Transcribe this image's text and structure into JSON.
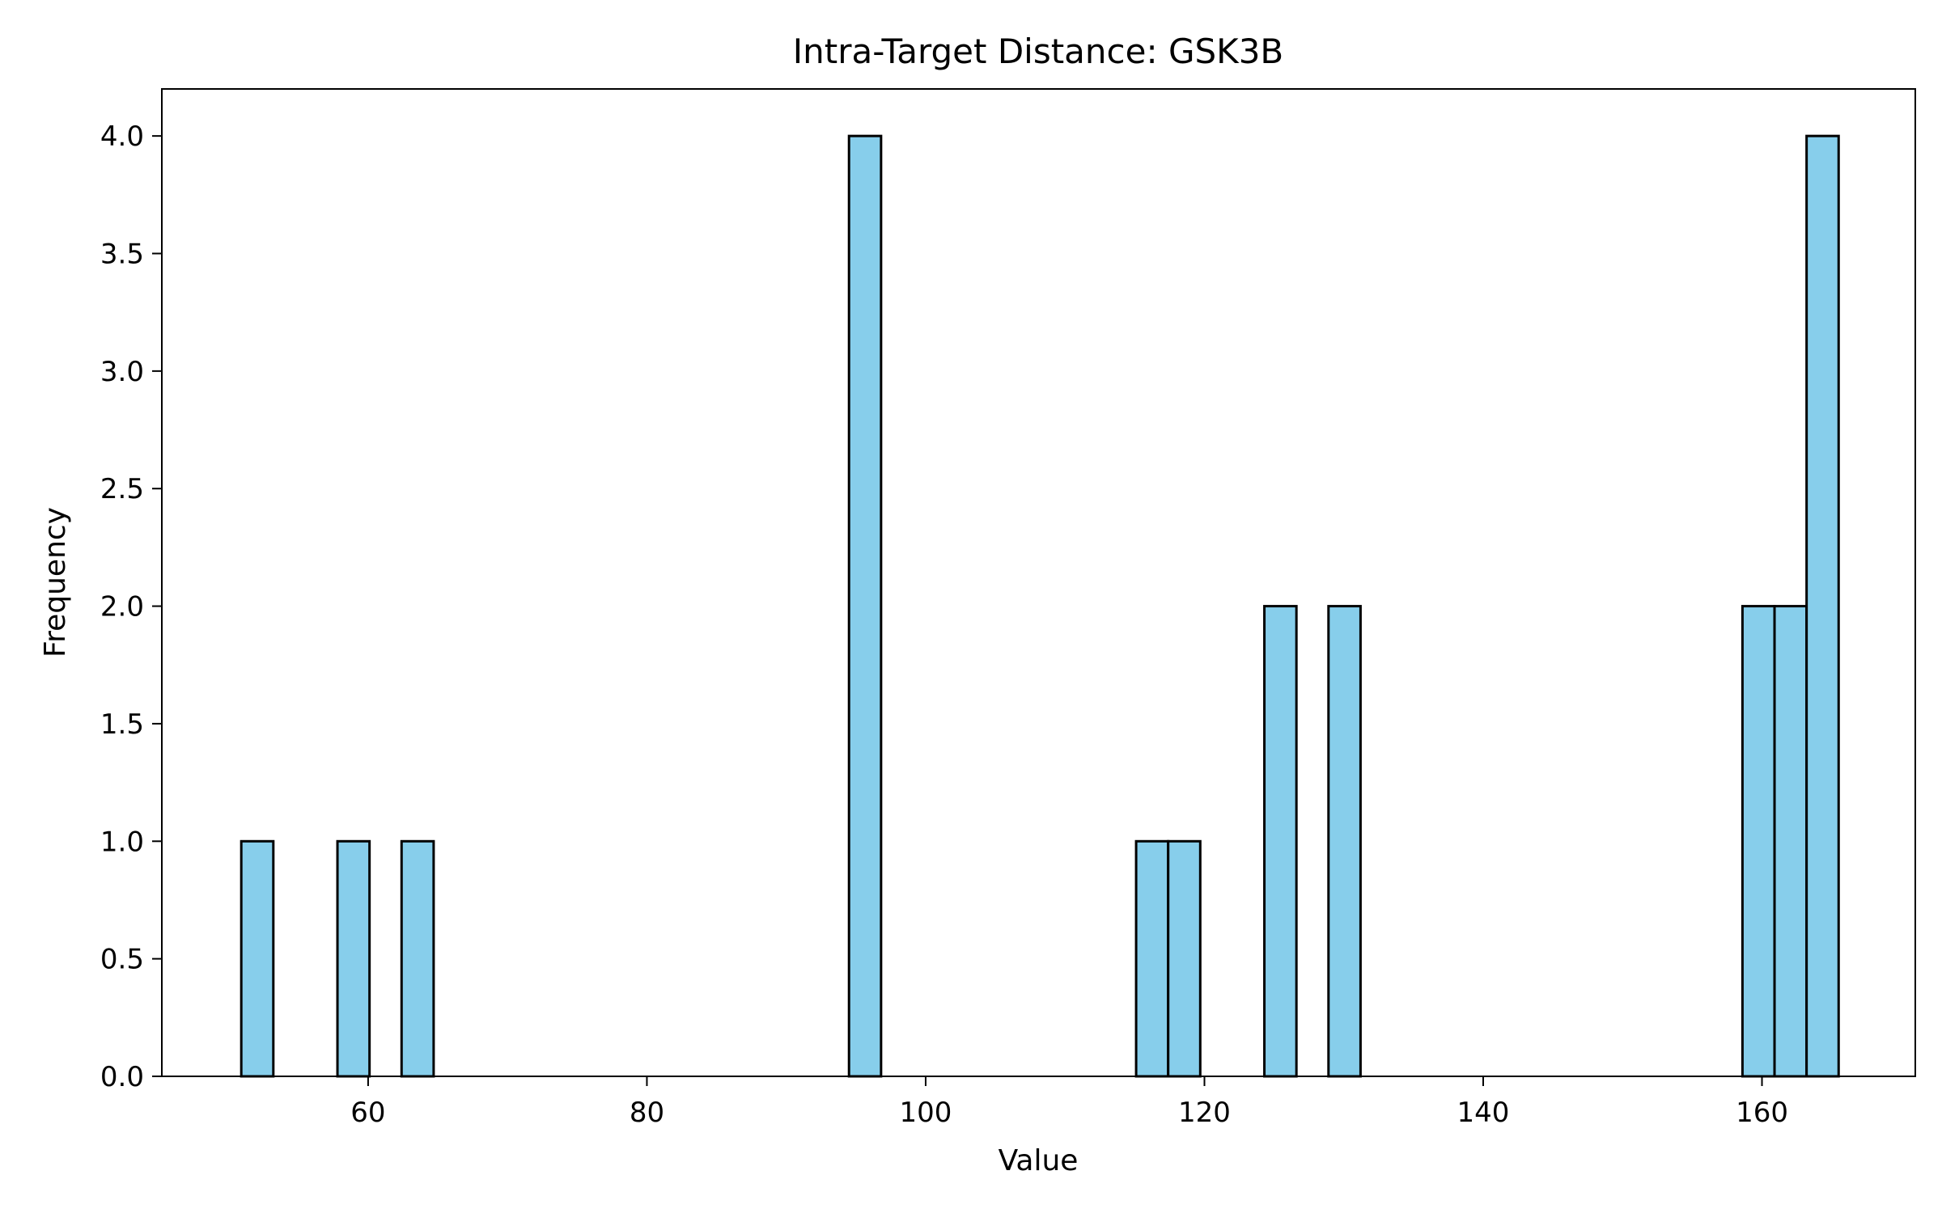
{
  "chart_data": {
    "type": "bar",
    "title": "Intra-Target Distance: GSK3B",
    "xlabel": "Value",
    "ylabel": "Frequency",
    "xlim": [
      45.2,
      171.0
    ],
    "ylim": [
      0.0,
      4.2
    ],
    "xticks": [
      60,
      80,
      100,
      120,
      140,
      160
    ],
    "yticks": [
      0.0,
      0.5,
      1.0,
      1.5,
      2.0,
      2.5,
      3.0,
      3.5,
      4.0
    ],
    "bin_width": 2.29,
    "bins": [
      {
        "x0": 50.9,
        "x1": 53.2,
        "value": 1
      },
      {
        "x0": 57.8,
        "x1": 60.1,
        "value": 1
      },
      {
        "x0": 62.4,
        "x1": 64.7,
        "value": 1
      },
      {
        "x0": 94.5,
        "x1": 96.8,
        "value": 4
      },
      {
        "x0": 115.1,
        "x1": 117.4,
        "value": 1
      },
      {
        "x0": 117.4,
        "x1": 119.7,
        "value": 1
      },
      {
        "x0": 124.3,
        "x1": 126.6,
        "value": 2
      },
      {
        "x0": 128.9,
        "x1": 131.2,
        "value": 2
      },
      {
        "x0": 158.6,
        "x1": 160.9,
        "value": 2
      },
      {
        "x0": 160.9,
        "x1": 163.2,
        "value": 2
      },
      {
        "x0": 163.2,
        "x1": 165.5,
        "value": 4
      }
    ],
    "grid": false,
    "bar_color": "#87CEEB",
    "edge_color": "#000000"
  }
}
